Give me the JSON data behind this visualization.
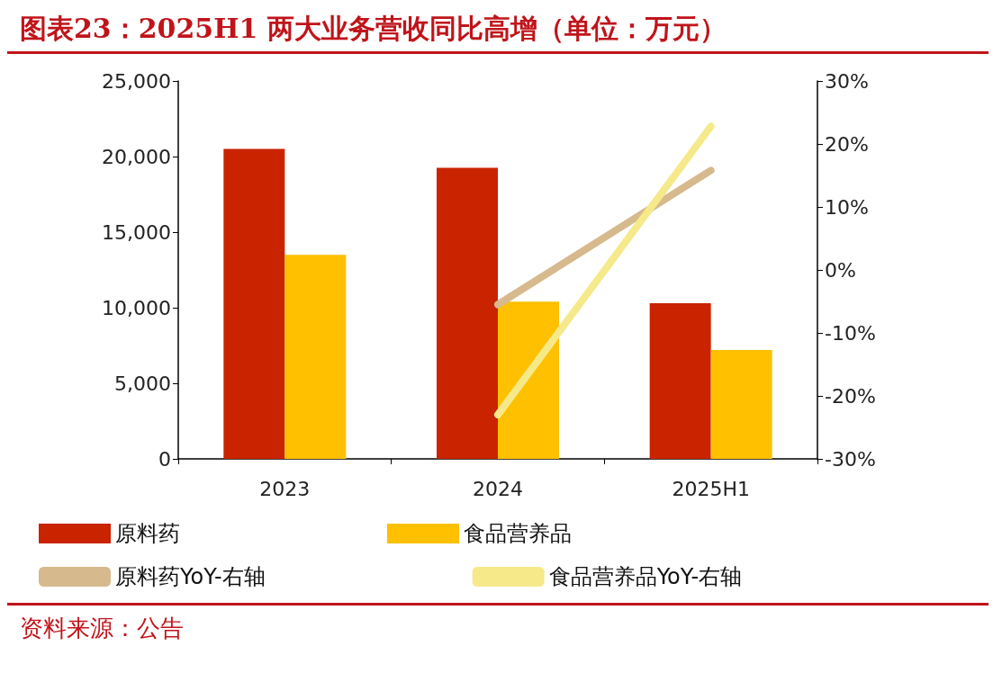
{
  "chart_data": {
    "type": "bar",
    "title": "图表23：2025H1 两大业务营收同比高增（单位：万元）",
    "categories": [
      "2023",
      "2024",
      "2025H1"
    ],
    "series": [
      {
        "name": "原料药",
        "color": "#c92300",
        "values": [
          20500,
          19250,
          10300
        ]
      },
      {
        "name": "食品营养品",
        "color": "#ffc000",
        "values": [
          13500,
          10400,
          7200
        ]
      },
      {
        "name": "原料药YoY-右轴",
        "type": "line",
        "axis": "y2",
        "color": "#d7b98e",
        "values": [
          null,
          -5.5,
          15.8
        ]
      },
      {
        "name": "食品营养品YoY-右轴",
        "type": "line",
        "axis": "y2",
        "color": "#f5e98a",
        "values": [
          null,
          -23,
          22.8
        ]
      }
    ],
    "ylim": [
      0,
      25000
    ],
    "yticks": [
      {
        "value": 0,
        "label": "0"
      },
      {
        "value": 5000,
        "label": "5,000"
      },
      {
        "value": 10000,
        "label": "10,000"
      },
      {
        "value": 15000,
        "label": "15,000"
      },
      {
        "value": 20000,
        "label": "20,000"
      },
      {
        "value": 25000,
        "label": "25,000"
      }
    ],
    "y2lim": [
      -30,
      30
    ],
    "y2ticks": [
      {
        "value": -30,
        "label": "-30%"
      },
      {
        "value": -20,
        "label": "-20%"
      },
      {
        "value": -10,
        "label": "-10%"
      },
      {
        "value": 0,
        "label": "0%"
      },
      {
        "value": 10,
        "label": "10%"
      },
      {
        "value": 20,
        "label": "20%"
      },
      {
        "value": 30,
        "label": "30%"
      }
    ],
    "grid": false,
    "legend": "bottom",
    "marker": "none",
    "annotations": [
      "资料来源：公告"
    ]
  }
}
